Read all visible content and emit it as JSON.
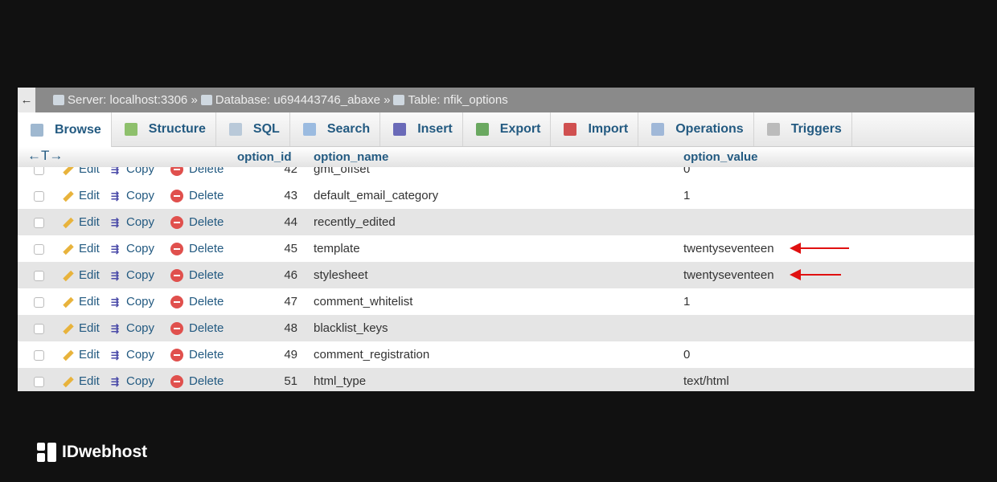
{
  "breadcrumb": {
    "back": "←",
    "server": "Server: localhost:3306",
    "database": "Database: u694443746_abaxe",
    "table": "Table: nfik_options",
    "sep": "»"
  },
  "tabs": [
    {
      "label": "Browse",
      "icon": "browse-icon",
      "color": "#9fb8d0"
    },
    {
      "label": "Structure",
      "icon": "structure-icon",
      "color": "#8ec06c"
    },
    {
      "label": "SQL",
      "icon": "sql-icon",
      "color": "#b9c9d9"
    },
    {
      "label": "Search",
      "icon": "search-icon",
      "color": "#9bbbe0"
    },
    {
      "label": "Insert",
      "icon": "insert-icon",
      "color": "#6a6ab8"
    },
    {
      "label": "Export",
      "icon": "export-icon",
      "color": "#6aa860"
    },
    {
      "label": "Import",
      "icon": "import-icon",
      "color": "#d05050"
    },
    {
      "label": "Operations",
      "icon": "wrench-icon",
      "color": "#a0b8d8"
    },
    {
      "label": "Triggers",
      "icon": "triggers-icon",
      "color": "#bbbbbb"
    }
  ],
  "columns": {
    "arrows": "←T→",
    "id": "option_id",
    "name": "option_name",
    "value": "option_value"
  },
  "actions": {
    "edit": "Edit",
    "copy": "Copy",
    "delete": "Delete"
  },
  "rows": [
    {
      "id": "42",
      "name": "gmt_offset",
      "value": "0"
    },
    {
      "id": "43",
      "name": "default_email_category",
      "value": "1"
    },
    {
      "id": "44",
      "name": "recently_edited",
      "value": ""
    },
    {
      "id": "45",
      "name": "template",
      "value": "twentyseventeen",
      "arrow": true
    },
    {
      "id": "46",
      "name": "stylesheet",
      "value": "twentyseventeen",
      "arrow": true
    },
    {
      "id": "47",
      "name": "comment_whitelist",
      "value": "1"
    },
    {
      "id": "48",
      "name": "blacklist_keys",
      "value": ""
    },
    {
      "id": "49",
      "name": "comment_registration",
      "value": "0"
    },
    {
      "id": "51",
      "name": "html_type",
      "value": "text/html"
    }
  ],
  "annotation_color": "#e01010",
  "brand": {
    "name": "IDwebhost"
  }
}
